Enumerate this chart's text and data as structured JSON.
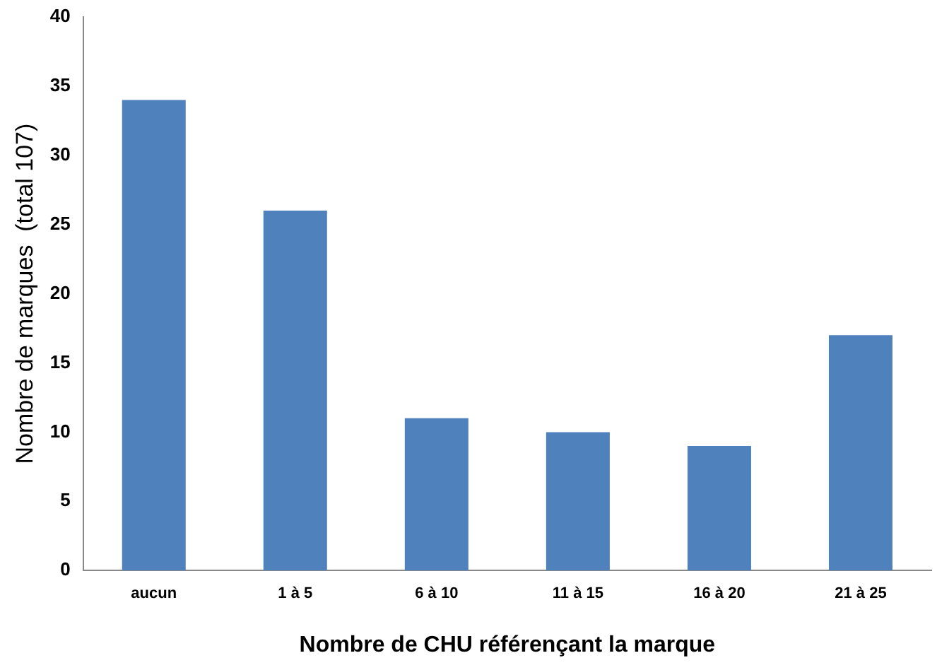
{
  "chart_data": {
    "type": "bar",
    "xlabel": "Nombre de CHU référençant la marque",
    "ylabel": "Nombre de marques  (total 107)",
    "categories": [
      "aucun",
      "1 à 5",
      "6 à 10",
      "11 à 15",
      "16 à 20",
      "21 à 25"
    ],
    "values": [
      34,
      26,
      11,
      10,
      9,
      17
    ],
    "color": "#4f81bd",
    "ylim": [
      0,
      40
    ],
    "yticks": [
      0,
      5,
      10,
      15,
      20,
      25,
      30,
      35,
      40
    ],
    "grid": false,
    "legend": false
  }
}
